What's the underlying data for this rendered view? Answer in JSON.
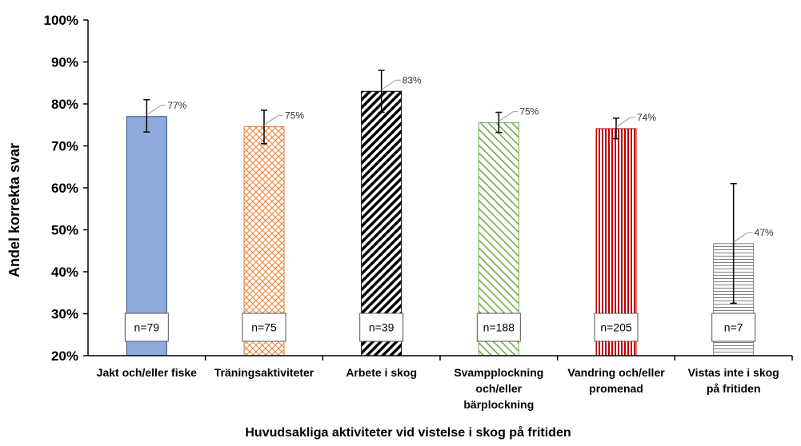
{
  "chart_data": {
    "type": "bar",
    "title": "",
    "xlabel": "Huvudsakliga aktiviteter vid vistelse i skog på fritiden",
    "ylabel": "Andel korrekta svar",
    "ylim": [
      0.2,
      1.0
    ],
    "y_ticks": [
      "20%",
      "30%",
      "40%",
      "50%",
      "60%",
      "70%",
      "80%",
      "90%",
      "100%"
    ],
    "grid": false,
    "categories": [
      [
        "Jakt och/eller fiske"
      ],
      [
        "Träningsaktiviteter"
      ],
      [
        "Arbete i skog"
      ],
      [
        "Svampplockning",
        "och/eller",
        "bärplockning"
      ],
      [
        "Vandring och/eller",
        "promenad"
      ],
      [
        "Vistas inte i skog",
        "på fritiden"
      ]
    ],
    "values": [
      0.77,
      0.746,
      0.83,
      0.755,
      0.741,
      0.467
    ],
    "value_labels": [
      "77%",
      "75%",
      "83%",
      "75%",
      "74%",
      "47%"
    ],
    "error_low": [
      0.733,
      0.705,
      0.78,
      0.732,
      0.717,
      0.325
    ],
    "error_high": [
      0.81,
      0.785,
      0.88,
      0.78,
      0.766,
      0.61
    ],
    "n_labels": [
      "n=79",
      "n=75",
      "n=39",
      "n=188",
      "n=205",
      "n=7"
    ],
    "bar_styles": [
      {
        "fill": "#8faadc",
        "pattern": "solid",
        "stroke": "#2f528f"
      },
      {
        "fill": "#ed7d31",
        "pattern": "crosshatch",
        "stroke": "#ed7d31"
      },
      {
        "fill": "#000000",
        "pattern": "diagonal-thick",
        "stroke": "#000000"
      },
      {
        "fill": "#70ad47",
        "pattern": "diagonal-light",
        "stroke": "#70ad47"
      },
      {
        "fill": "#c00000",
        "pattern": "vertical",
        "stroke": "#c00000"
      },
      {
        "fill": "#7f7f7f",
        "pattern": "horizontal",
        "stroke": "#7f7f7f"
      }
    ]
  }
}
